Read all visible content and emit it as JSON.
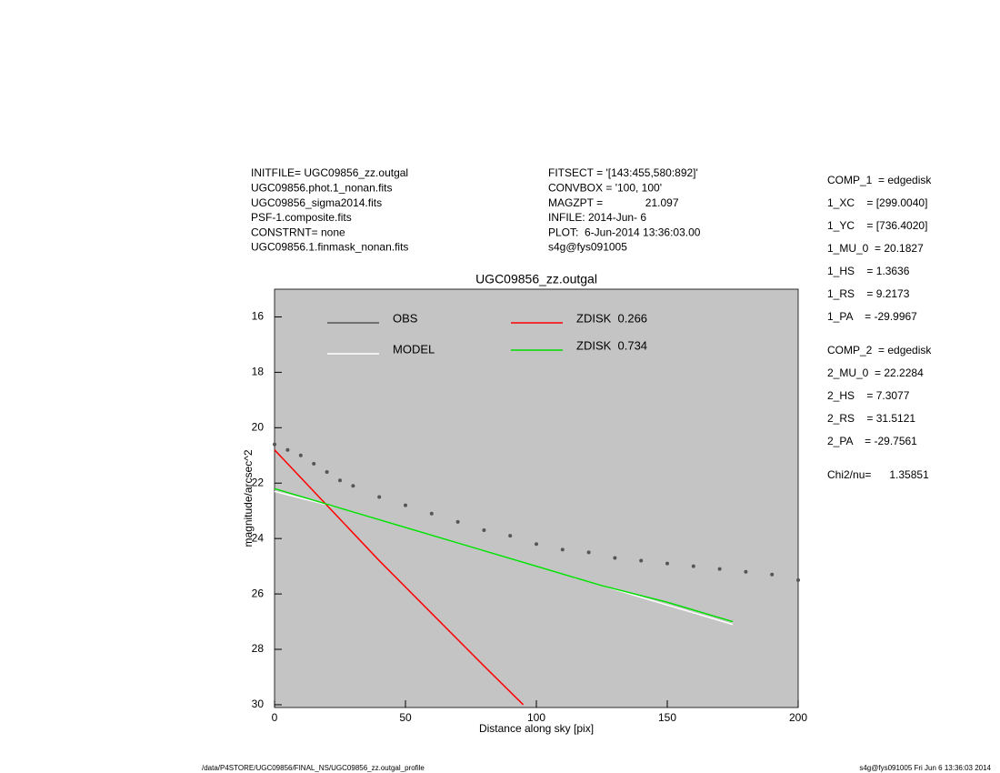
{
  "header_left": [
    "INITFILE= UGC09856_zz.outgal",
    "UGC09856.phot.1_nonan.fits",
    "UGC09856_sigma2014.fits",
    "PSF-1.composite.fits",
    "CONSTRNT= none",
    "UGC09856.1.finmask_nonan.fits"
  ],
  "header_mid": [
    "FITSECT = '[143:455,580:892]'",
    "CONVBOX = '100, 100'",
    "MAGZPT =              21.097",
    "INFILE: 2014-Jun- 6",
    "PLOT:  6-Jun-2014 13:36:03.00",
    "s4g@fys091005"
  ],
  "params": [
    "COMP_1  = edgedisk",
    "1_XC    = [299.0040]",
    "1_YC    = [736.4020]",
    "1_MU_0  = 20.1827",
    "1_HS    = 1.3636",
    "1_RS    = 9.2173",
    "1_PA    = -29.9967",
    "COMP_2  = edgedisk",
    "2_MU_0  = 22.2284",
    "2_HS    = 7.3077",
    "2_RS    = 31.5121",
    "2_PA    = -29.7561",
    "Chi2/nu=      1.35851"
  ],
  "footer_left": "/data/P4STORE/UGC09856/FINAL_NS/UGC09856_zz.outgal_profile",
  "footer_right": "s4g@fys091005  Fri Jun  6 13:36:03 2014",
  "chart_data": {
    "type": "scatter",
    "title": "UGC09856_zz.outgal",
    "x_label": "Distance along sky [pix]",
    "y_label": "magnitude/arcsec^2",
    "xlim": [
      0,
      200
    ],
    "ylim": [
      15,
      30.1
    ],
    "y_inverted": true,
    "xticks": [
      0,
      50,
      100,
      150,
      200
    ],
    "yticks": [
      16,
      18,
      20,
      22,
      24,
      26,
      28,
      30
    ],
    "background": "#c4c4c4",
    "series": [
      {
        "name": "OBS",
        "color": "#555555",
        "kind": "scatter",
        "x": [
          0,
          5,
          10,
          15,
          20,
          25,
          30,
          40,
          50,
          60,
          70,
          80,
          90,
          100,
          110,
          120,
          130,
          140,
          150,
          160,
          170,
          180,
          190,
          200
        ],
        "values": [
          20.6,
          20.8,
          21.0,
          21.3,
          21.6,
          21.9,
          22.1,
          22.5,
          22.8,
          23.1,
          23.4,
          23.7,
          23.9,
          24.2,
          24.4,
          24.5,
          24.7,
          24.8,
          24.9,
          25.0,
          25.1,
          25.2,
          25.3,
          25.5
        ]
      },
      {
        "name": "MODEL",
        "color": "#ffffff",
        "kind": "line",
        "x": [
          0,
          25,
          50,
          75,
          100,
          125,
          150,
          175
        ],
        "values": [
          22.3,
          22.9,
          23.6,
          24.3,
          25.0,
          25.7,
          26.4,
          27.1
        ]
      },
      {
        "name": "ZDISK  0.266",
        "color": "#ff0000",
        "kind": "line",
        "x": [
          0,
          20,
          40,
          60,
          80,
          95
        ],
        "values": [
          20.8,
          22.8,
          24.8,
          26.7,
          28.6,
          30.0
        ]
      },
      {
        "name": "ZDISK  0.734",
        "color": "#00dd00",
        "kind": "line",
        "x": [
          0,
          25,
          50,
          75,
          100,
          125,
          150,
          175
        ],
        "values": [
          22.2,
          22.9,
          23.6,
          24.3,
          25.0,
          25.7,
          26.3,
          27.0
        ]
      }
    ]
  }
}
